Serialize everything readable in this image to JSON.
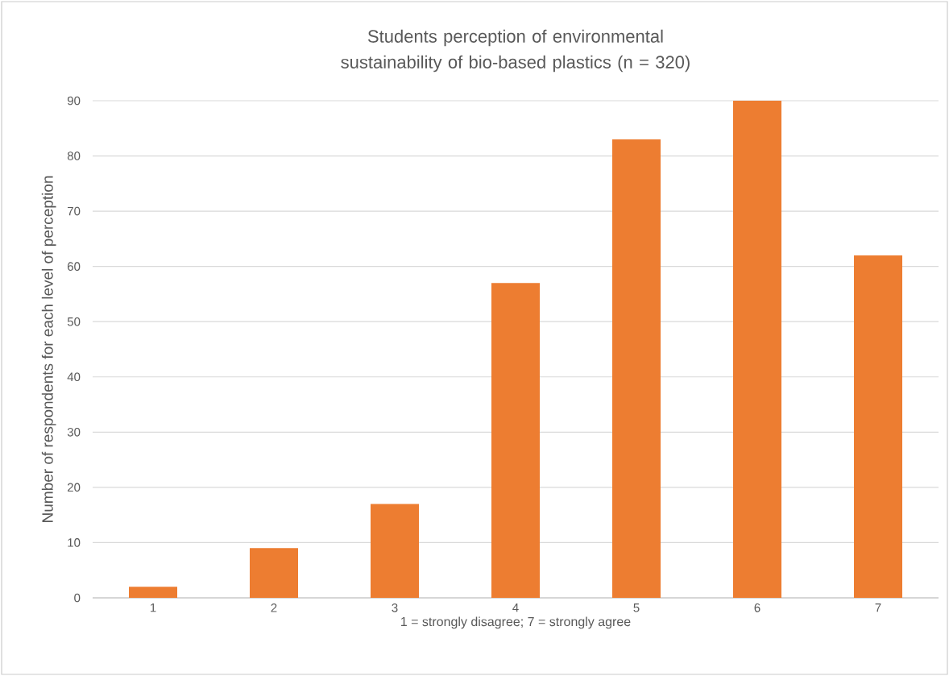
{
  "chart_data": {
    "type": "bar",
    "title": "Students perception of environmental sustainability of bio-based plastics (n = 320)",
    "xlabel": "1 = strongly disagree; 7 = strongly agree",
    "ylabel": "Number of respondents for each level of perception",
    "categories": [
      "1",
      "2",
      "3",
      "4",
      "5",
      "6",
      "7"
    ],
    "values": [
      2,
      9,
      17,
      57,
      83,
      90,
      62
    ],
    "color": "#ed7d31",
    "ylim": [
      0,
      90
    ],
    "yticks": [
      0,
      10,
      20,
      30,
      40,
      50,
      60,
      70,
      80,
      90
    ],
    "grid": "y"
  }
}
